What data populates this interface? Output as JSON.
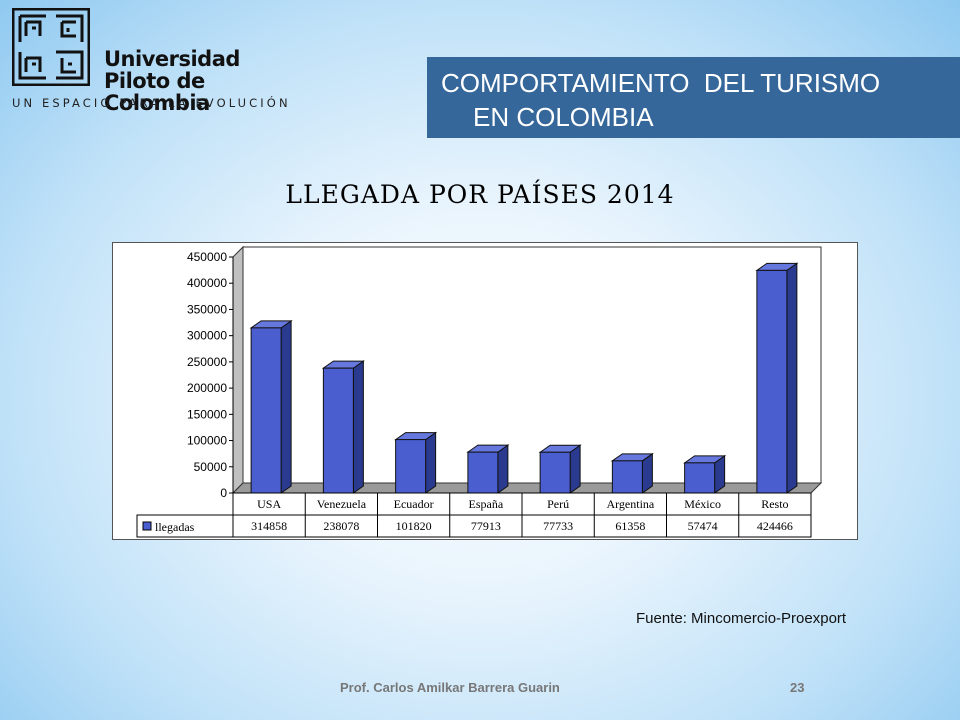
{
  "logo": {
    "name_line1": "Universidad",
    "name_line2": "Piloto de Colombia",
    "tagline": "UN ESPACIO PARA LA EVOLUCIÓN"
  },
  "header": {
    "title_line1": "COMPORTAMIENTO  DEL TURISMO",
    "title_line2": "EN COLOMBIA",
    "accent_color": "#35679a"
  },
  "chart_data": {
    "type": "bar",
    "title": "LLEGADA POR PAÍSES 2014",
    "categories": [
      "USA",
      "Venezuela",
      "Ecuador",
      "España",
      "Perú",
      "Argentina",
      "México",
      "Resto"
    ],
    "series": [
      {
        "name": "llegadas",
        "values": [
          314858,
          238078,
          101820,
          77913,
          77733,
          61358,
          57474,
          424466
        ],
        "color": "#4a5ecf"
      }
    ],
    "ylim": [
      0,
      450000
    ],
    "yticks": [
      0,
      50000,
      100000,
      150000,
      200000,
      250000,
      300000,
      350000,
      400000,
      450000
    ],
    "grid": false,
    "style": "3d-column",
    "legend": "data-table"
  },
  "source": "Fuente: Mincomercio-Proexport",
  "footer": {
    "author": "Prof. Carlos Amilkar Barrera Guarin",
    "page": "23"
  }
}
